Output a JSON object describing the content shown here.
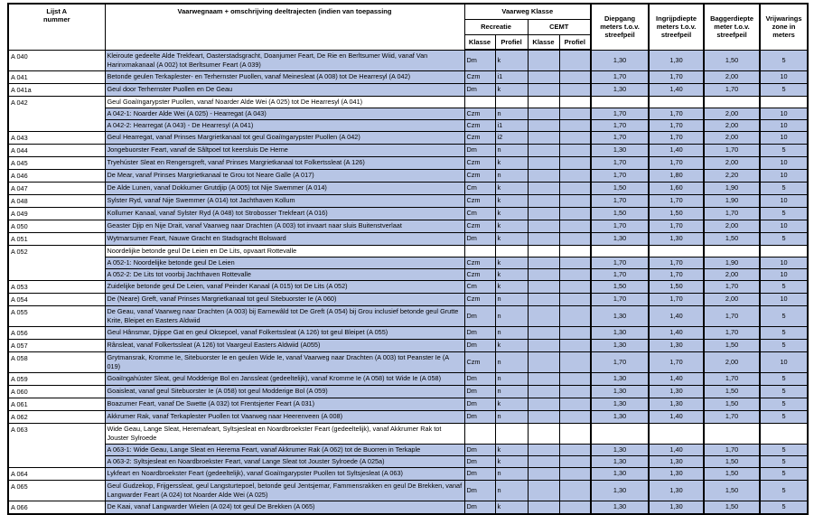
{
  "colors": {
    "row_highlight": "#b7c5e5",
    "border": "#000000",
    "background": "#ffffff"
  },
  "header": {
    "lijst_a_nummer": "Lijst A\nnummer",
    "vaarwegnaam": "Vaarwegnaam + omschrijving deeltrajecten (indien van toepassing",
    "vaarweg_klasse": "Vaarweg Klasse",
    "recreatie": "Recreatie",
    "cemt": "CEMT",
    "klasse": "Klasse",
    "profiel": "Profiel",
    "diepgang": "Diepgang\nmeters t.o.v.\nstreefpeil",
    "ingrijpdiepte": "Ingrijpdiepte\nmeters t.o.v.\nstreefpeil",
    "baggerdiepte": "Baggerdiepte\nmeter t.o.v.\nstreefpeil",
    "vrijwaringszone": "Vrijwarings\nzone in\nmeters"
  },
  "rows": [
    {
      "nummer": "A 040",
      "omschrijving": "Kleiroute gedeelte Alde Trekfeart, Oasterstadsgracht, Doanjumer Feart, De Rie en Berltsumer Wiid, vanaf Van Harinxmakanaal (A 002) tot Berltsumer Feart (A 039)",
      "recreatie_klasse": "Dm",
      "recreatie_profiel": "k",
      "cemt_klasse": "",
      "cemt_profiel": "",
      "diepgang": "1,30",
      "ingrijpdiepte": "1,30",
      "baggerdiepte": "1,50",
      "vrijwaringszone": "5"
    },
    {
      "nummer": "A 041",
      "omschrijving": "Betonde geulen Terkaplester- en Terhernster Puollen, vanaf Meinesleat (A 008) tot De Hearresyl (A 042)",
      "recreatie_klasse": "Czm",
      "recreatie_profiel": "i1",
      "cemt_klasse": "",
      "cemt_profiel": "",
      "diepgang": "1,70",
      "ingrijpdiepte": "1,70",
      "baggerdiepte": "2,00",
      "vrijwaringszone": "10"
    },
    {
      "nummer": "A 041a",
      "omschrijving": "Geul door Terhernster Puollen en De Geau",
      "recreatie_klasse": "Dm",
      "recreatie_profiel": "k",
      "cemt_klasse": "",
      "cemt_profiel": "",
      "diepgang": "1,30",
      "ingrijpdiepte": "1,40",
      "baggerdiepte": "1,70",
      "vrijwaringszone": "5"
    },
    {
      "nummer": "A 042",
      "omschrijving": "Geul Goaiïngarypster Puollen, vanaf Noarder Alde Wei (A 025) tot De Hearresyl (A 041)",
      "group": true,
      "group_span": 3,
      "recreatie_klasse": "",
      "recreatie_profiel": "",
      "cemt_klasse": "",
      "cemt_profiel": "",
      "diepgang": "",
      "ingrijpdiepte": "",
      "baggerdiepte": "",
      "vrijwaringszone": ""
    },
    {
      "sub": true,
      "omschrijving": "A 042-1: Noarder Alde Wei (A 025) - Hearregat (A 043)",
      "recreatie_klasse": "Czm",
      "recreatie_profiel": "n",
      "cemt_klasse": "",
      "cemt_profiel": "",
      "diepgang": "1,70",
      "ingrijpdiepte": "1,70",
      "baggerdiepte": "2,00",
      "vrijwaringszone": "10"
    },
    {
      "sub": true,
      "omschrijving": "A 042-2: Hearregat (A 043) - De Hearresyl (A 041)",
      "recreatie_klasse": "Czm",
      "recreatie_profiel": "i1",
      "cemt_klasse": "",
      "cemt_profiel": "",
      "diepgang": "1,70",
      "ingrijpdiepte": "1,70",
      "baggerdiepte": "2,00",
      "vrijwaringszone": "10"
    },
    {
      "nummer": "A 043",
      "omschrijving": "Geul Hearregat, vanaf Prinses Margrietkanaal tot geul Goaiïngarypster Puollen (A 042)",
      "recreatie_klasse": "Czm",
      "recreatie_profiel": "i2",
      "cemt_klasse": "",
      "cemt_profiel": "",
      "diepgang": "1,70",
      "ingrijpdiepte": "1,70",
      "baggerdiepte": "2,00",
      "vrijwaringszone": "10"
    },
    {
      "nummer": "A 044",
      "omschrijving": "Jongebuorster Feart, vanaf de Sâltpoel tot keersluis De Herne",
      "recreatie_klasse": "Dm",
      "recreatie_profiel": "n",
      "cemt_klasse": "",
      "cemt_profiel": "",
      "diepgang": "1,30",
      "ingrijpdiepte": "1,40",
      "baggerdiepte": "1,70",
      "vrijwaringszone": "5"
    },
    {
      "nummer": "A 045",
      "omschrijving": "Tryehúster Sleat en Rengersgreft, vanaf Prinses Margrietkanaal tot Folkertssleat (A 126)",
      "recreatie_klasse": "Czm",
      "recreatie_profiel": "k",
      "cemt_klasse": "",
      "cemt_profiel": "",
      "diepgang": "1,70",
      "ingrijpdiepte": "1,70",
      "baggerdiepte": "2,00",
      "vrijwaringszone": "10"
    },
    {
      "nummer": "A 046",
      "omschrijving": "De Mear, vanaf Prinses Margrietkanaal te Grou tot Neare Galle (A 017)",
      "recreatie_klasse": "Czm",
      "recreatie_profiel": "n",
      "cemt_klasse": "",
      "cemt_profiel": "",
      "diepgang": "1,70",
      "ingrijpdiepte": "1,80",
      "baggerdiepte": "2,20",
      "vrijwaringszone": "10"
    },
    {
      "nummer": "A 047",
      "omschrijving": "De Alde Lunen, vanaf Dokkumer Grutdjip (A 005) tot Nije Swemmer (A 014)",
      "recreatie_klasse": "Cm",
      "recreatie_profiel": "k",
      "cemt_klasse": "",
      "cemt_profiel": "",
      "diepgang": "1,50",
      "ingrijpdiepte": "1,60",
      "baggerdiepte": "1,90",
      "vrijwaringszone": "5"
    },
    {
      "nummer": "A 048",
      "omschrijving": "Sylster Ryd, vanaf Nije Swemmer (A 014) tot Jachthaven Kollum",
      "recreatie_klasse": "Czm",
      "recreatie_profiel": "k",
      "cemt_klasse": "",
      "cemt_profiel": "",
      "diepgang": "1,70",
      "ingrijpdiepte": "1,70",
      "baggerdiepte": "1,90",
      "vrijwaringszone": "10"
    },
    {
      "nummer": "A 049",
      "omschrijving": "Kollumer Kanaal, vanaf Sylster Ryd (A 048) tot Strobosser Trekfeart (A 016)",
      "recreatie_klasse": "Cm",
      "recreatie_profiel": "k",
      "cemt_klasse": "",
      "cemt_profiel": "",
      "diepgang": "1,50",
      "ingrijpdiepte": "1,50",
      "baggerdiepte": "1,70",
      "vrijwaringszone": "5"
    },
    {
      "nummer": "A 050",
      "omschrijving": "Geaster Djip en Nije Drait, vanaf Vaarweg naar Drachten (A 003) tot invaart naar sluis Buitenstverlaat",
      "recreatie_klasse": "Czm",
      "recreatie_profiel": "k",
      "cemt_klasse": "",
      "cemt_profiel": "",
      "diepgang": "1,70",
      "ingrijpdiepte": "1,70",
      "baggerdiepte": "2,00",
      "vrijwaringszone": "10"
    },
    {
      "nummer": "A 051",
      "omschrijving": "Wytmarsumer Feart, Nauwe Gracht en Stadsgracht Bolsward",
      "recreatie_klasse": "Dm",
      "recreatie_profiel": "k",
      "cemt_klasse": "",
      "cemt_profiel": "",
      "diepgang": "1,30",
      "ingrijpdiepte": "1,30",
      "baggerdiepte": "1,50",
      "vrijwaringszone": "5"
    },
    {
      "nummer": "A 052",
      "omschrijving": "Noordelijke betonde geul De Leien en De Lits, opvaart Rottevalle",
      "group": true,
      "group_span": 3,
      "recreatie_klasse": "",
      "recreatie_profiel": "",
      "cemt_klasse": "",
      "cemt_profiel": "",
      "diepgang": "",
      "ingrijpdiepte": "",
      "baggerdiepte": "",
      "vrijwaringszone": ""
    },
    {
      "sub": true,
      "omschrijving": "A 052-1: Noordelijke betonde geul De Leien",
      "recreatie_klasse": "Czm",
      "recreatie_profiel": "k",
      "cemt_klasse": "",
      "cemt_profiel": "",
      "diepgang": "1,70",
      "ingrijpdiepte": "1,70",
      "baggerdiepte": "1,90",
      "vrijwaringszone": "10"
    },
    {
      "sub": true,
      "omschrijving": "A 052-2: De Lits tot voorbij Jachthaven Rottevalle",
      "recreatie_klasse": "Czm",
      "recreatie_profiel": "k",
      "cemt_klasse": "",
      "cemt_profiel": "",
      "diepgang": "1,70",
      "ingrijpdiepte": "1,70",
      "baggerdiepte": "2,00",
      "vrijwaringszone": "10"
    },
    {
      "nummer": "A 053",
      "omschrijving": "Zuidelijke betonde geul De Leien, vanaf Peinder Kanaal (A 015) tot De Lits (A 052)",
      "recreatie_klasse": "Cm",
      "recreatie_profiel": "k",
      "cemt_klasse": "",
      "cemt_profiel": "",
      "diepgang": "1,50",
      "ingrijpdiepte": "1,50",
      "baggerdiepte": "1,70",
      "vrijwaringszone": "5"
    },
    {
      "nummer": "A 054",
      "omschrijving": "De (Neare) Greft, vanaf Prinses Margrietkanaal tot geul Sitebuorster Ie (A 060)",
      "recreatie_klasse": "Czm",
      "recreatie_profiel": "n",
      "cemt_klasse": "",
      "cemt_profiel": "",
      "diepgang": "1,70",
      "ingrijpdiepte": "1,70",
      "baggerdiepte": "2,00",
      "vrijwaringszone": "10"
    },
    {
      "nummer": "A 055",
      "omschrijving": "De Geau, vanaf Vaarweg naar Drachten (A 003) bij Earnewâld tot De Greft (A 054) bij Grou inclusief betonde geul Grutte Krite, Bleipet en Easters Aldwiid",
      "recreatie_klasse": "Dm",
      "recreatie_profiel": "n",
      "cemt_klasse": "",
      "cemt_profiel": "",
      "diepgang": "1,30",
      "ingrijpdiepte": "1,40",
      "baggerdiepte": "1,70",
      "vrijwaringszone": "5"
    },
    {
      "nummer": "A 056",
      "omschrijving": "Geul Hânsmar, Djippe Gat en geul Oksepoel, vanaf Folkertssleat (A 126) tot geul Bleipet (A 055)",
      "recreatie_klasse": "Dm",
      "recreatie_profiel": "n",
      "cemt_klasse": "",
      "cemt_profiel": "",
      "diepgang": "1,30",
      "ingrijpdiepte": "1,40",
      "baggerdiepte": "1,70",
      "vrijwaringszone": "5"
    },
    {
      "nummer": "A 057",
      "omschrijving": "Rânsleat, vanaf Folkertssleat (A 126) tot Vaargeul Easters Aldwiid (A055)",
      "recreatie_klasse": "Dm",
      "recreatie_profiel": "k",
      "cemt_klasse": "",
      "cemt_profiel": "",
      "diepgang": "1,30",
      "ingrijpdiepte": "1,30",
      "baggerdiepte": "1,50",
      "vrijwaringszone": "5"
    },
    {
      "nummer": "A 058",
      "omschrijving": "Grytmansrak, Kromme Ie, Sitebuorster Ie en geulen Wide Ie, vanaf Vaarweg naar Drachten (A 003) tot Peanster Ie (A 019)",
      "recreatie_klasse": "Czm",
      "recreatie_profiel": "n",
      "cemt_klasse": "",
      "cemt_profiel": "",
      "diepgang": "1,70",
      "ingrijpdiepte": "1,70",
      "baggerdiepte": "2,00",
      "vrijwaringszone": "10"
    },
    {
      "nummer": "A 059",
      "omschrijving": "Goaiïngahúster Sleat, geul Modderige Bol en Janssleat (gedeeltelijk), vanaf Kromme Ie (A 058) tot Wide Ie (A 058)",
      "recreatie_klasse": "Dm",
      "recreatie_profiel": "n",
      "cemt_klasse": "",
      "cemt_profiel": "",
      "diepgang": "1,30",
      "ingrijpdiepte": "1,40",
      "baggerdiepte": "1,70",
      "vrijwaringszone": "5"
    },
    {
      "nummer": "A 060",
      "omschrijving": "Goaisleat, vanaf geul Sitebuorster Ie (A 058) tot geul Modderige Bol (A 059)",
      "recreatie_klasse": "Dm",
      "recreatie_profiel": "n",
      "cemt_klasse": "",
      "cemt_profiel": "",
      "diepgang": "1,30",
      "ingrijpdiepte": "1,30",
      "baggerdiepte": "1,50",
      "vrijwaringszone": "5"
    },
    {
      "nummer": "A 061",
      "omschrijving": "Boazumer Feart, vanaf De Swette (A 032) tot Frentsjerter Feart (A 031)",
      "recreatie_klasse": "Dm",
      "recreatie_profiel": "k",
      "cemt_klasse": "",
      "cemt_profiel": "",
      "diepgang": "1,30",
      "ingrijpdiepte": "1,30",
      "baggerdiepte": "1,50",
      "vrijwaringszone": "5"
    },
    {
      "nummer": "A 062",
      "omschrijving": "Akkrumer Rak, vanaf Terkaplester Puollen tot Vaarweg naar Heerenveen (A 008)",
      "recreatie_klasse": "Dm",
      "recreatie_profiel": "n",
      "cemt_klasse": "",
      "cemt_profiel": "",
      "diepgang": "1,30",
      "ingrijpdiepte": "1,40",
      "baggerdiepte": "1,70",
      "vrijwaringszone": "5"
    },
    {
      "nummer": "A 063",
      "omschrijving": "Wide Geau, Lange Sleat, Heremafeart, Syltsjesleat en Noardbroekster Feart (gedeeltelijk), vanaf Akkrumer Rak tot Jouster Sylroede",
      "group": true,
      "group_span": 3,
      "recreatie_klasse": "",
      "recreatie_profiel": "",
      "cemt_klasse": "",
      "cemt_profiel": "",
      "diepgang": "",
      "ingrijpdiepte": "",
      "baggerdiepte": "",
      "vrijwaringszone": ""
    },
    {
      "sub": true,
      "omschrijving": "A 063-1: Wide Geau, Lange Sleat en Herema Feart, vanaf Akkrumer Rak (A 062) tot de Buorren in Terkaple",
      "recreatie_klasse": "Dm",
      "recreatie_profiel": "k",
      "cemt_klasse": "",
      "cemt_profiel": "",
      "diepgang": "1,30",
      "ingrijpdiepte": "1,40",
      "baggerdiepte": "1,70",
      "vrijwaringszone": "5"
    },
    {
      "sub": true,
      "omschrijving": "A 063-2: Syltsjesleat en Noardbroekster Feart, vanaf Lange Sleat tot Jouster Sylroede (A 025a)",
      "recreatie_klasse": "Dm",
      "recreatie_profiel": "k",
      "cemt_klasse": "",
      "cemt_profiel": "",
      "diepgang": "1,30",
      "ingrijpdiepte": "1,30",
      "baggerdiepte": "1,50",
      "vrijwaringszone": "5"
    },
    {
      "nummer": "A 064",
      "omschrijving": "Lykfeart en Noardbroekster Feart (gedeeltelijk), vanaf Goaiïngarypster Puollen tot Syltsjesleat (A 063)",
      "recreatie_klasse": "Dm",
      "recreatie_profiel": "n",
      "cemt_klasse": "",
      "cemt_profiel": "",
      "diepgang": "1,30",
      "ingrijpdiepte": "1,30",
      "baggerdiepte": "1,50",
      "vrijwaringszone": "5"
    },
    {
      "nummer": "A 065",
      "omschrijving": "Geul Gudzekop, Frijgerssleat, geul Langsturtepoel, betonde geul Jentsjemar, Fammensrakken en geul De Brekken, vanaf Langwarder Feart (A 024) tot Noarder Alde Wei (A 025)",
      "recreatie_klasse": "Dm",
      "recreatie_profiel": "n",
      "cemt_klasse": "",
      "cemt_profiel": "",
      "diepgang": "1,30",
      "ingrijpdiepte": "1,30",
      "baggerdiepte": "1,50",
      "vrijwaringszone": "5"
    },
    {
      "nummer": "A 066",
      "omschrijving": "De Kaai, vanaf Langwarder Wielen (A 024) tot geul De Brekken (A 065)",
      "recreatie_klasse": "Dm",
      "recreatie_profiel": "k",
      "cemt_klasse": "",
      "cemt_profiel": "",
      "diepgang": "1,30",
      "ingrijpdiepte": "1,30",
      "baggerdiepte": "1,50",
      "vrijwaringszone": "5"
    }
  ]
}
